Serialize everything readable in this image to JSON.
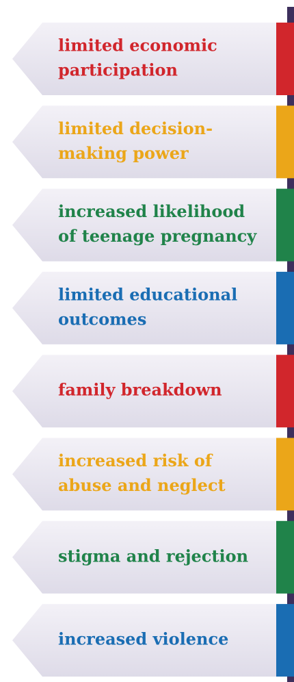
{
  "items": [
    {
      "lines": [
        "limited economic",
        "participation"
      ],
      "color": "#d1262c"
    },
    {
      "lines": [
        "limited decision-",
        "making power"
      ],
      "color": "#eba619"
    },
    {
      "lines": [
        "increased likelihood",
        "of teenage pregnancy"
      ],
      "color": "#20834a"
    },
    {
      "lines": [
        "limited educational",
        "outcomes"
      ],
      "color": "#1a6db3"
    },
    {
      "lines": [
        "family breakdown"
      ],
      "color": "#d1262c"
    },
    {
      "lines": [
        "increased risk of",
        "abuse and neglect"
      ],
      "color": "#eba619"
    },
    {
      "lines": [
        "stigma and rejection"
      ],
      "color": "#20834a"
    },
    {
      "lines": [
        "increased violence"
      ],
      "color": "#1a6db3"
    }
  ]
}
